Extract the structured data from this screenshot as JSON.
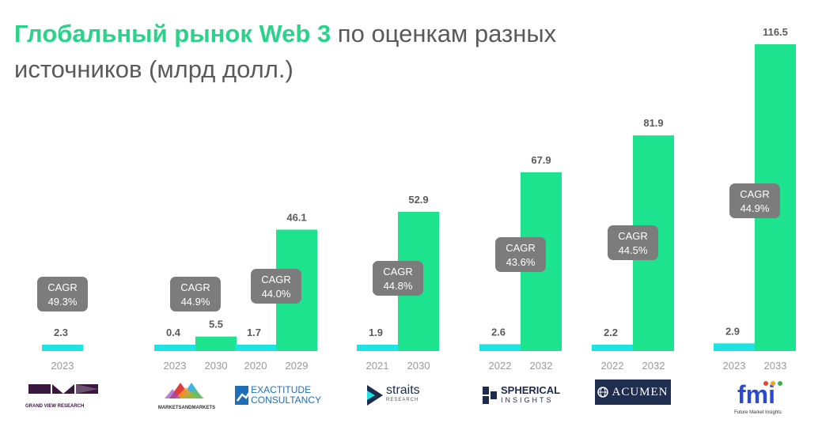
{
  "title": {
    "highlight": "Глобальный рынок Web 3",
    "rest": " по оценкам разных источников (млрд долл.)"
  },
  "colors": {
    "start": "#1de3e3",
    "end": "#1de38f",
    "cagr_box": "#7c7c7c",
    "title_accent": "#2bd28a"
  },
  "sources": [
    {
      "logo_main": "",
      "logo_sub": "GRAND VIEW RESEARCH",
      "start_year": "2023",
      "start_value": 2.3,
      "end_year": null,
      "end_value": null,
      "cagr": "49.3%"
    },
    {
      "logo_main": "",
      "logo_sub": "MARKETSANDMARKETS",
      "start_year": "2023",
      "start_value": 0.4,
      "end_year": "2030",
      "end_value": 5.5,
      "cagr": "44.9%"
    },
    {
      "logo_main": "EXACTITUDE",
      "logo_sub": "CONSULTANCY",
      "start_year": "2020",
      "start_value": 1.7,
      "end_year": "2029",
      "end_value": 46.1,
      "cagr": "44.0%"
    },
    {
      "logo_main": "straits",
      "logo_sub": "RESEARCH",
      "start_year": "2021",
      "start_value": 1.9,
      "end_year": "2030",
      "end_value": 52.9,
      "cagr": "44.8%"
    },
    {
      "logo_main": "SPHERICAL",
      "logo_sub": "INSIGHTS",
      "start_year": "2022",
      "start_value": 2.6,
      "end_year": "2032",
      "end_value": 67.9,
      "cagr": "43.6%"
    },
    {
      "logo_main": "ACUMEN",
      "logo_sub": "",
      "start_year": "2022",
      "start_value": 2.2,
      "end_year": "2032",
      "end_value": 81.9,
      "cagr": "44.5%"
    },
    {
      "logo_main": "fmi",
      "logo_sub": "Future Market Insights",
      "start_year": "2023",
      "start_value": 2.9,
      "end_year": "2033",
      "end_value": 116.5,
      "cagr": "44.9%"
    }
  ],
  "cagr_label": "CAGR",
  "chart_data": {
    "type": "bar",
    "title": "Глобальный рынок Web 3 по оценкам разных источников (млрд долл.)",
    "categories": [
      "GRAND VIEW RESEARCH",
      "MARKETSANDMARKETS",
      "EXACTITUDE CONSULTANCY",
      "straits RESEARCH",
      "SPHERICAL INSIGHTS",
      "ACUMEN",
      "fmi Future Market Insights"
    ],
    "series": [
      {
        "years": [
          "2023",
          "2023",
          "2020",
          "2021",
          "2022",
          "2022",
          "2023"
        ],
        "values": [
          2.3,
          0.4,
          1.7,
          1.9,
          2.6,
          2.2,
          2.9
        ]
      },
      {
        "years": [
          null,
          "2030",
          "2029",
          "2030",
          "2032",
          "2032",
          "2033"
        ],
        "values": [
          null,
          5.5,
          46.1,
          52.9,
          67.9,
          81.9,
          116.5
        ]
      }
    ],
    "annotations": [
      "CAGR 49.3%",
      "CAGR 44.9%",
      "CAGR 44.0%",
      "CAGR 44.8%",
      "CAGR 43.6%",
      "CAGR 44.5%",
      "CAGR 44.9%"
    ],
    "ylim": [
      0,
      116.5
    ],
    "grid": false,
    "legend": "none"
  }
}
